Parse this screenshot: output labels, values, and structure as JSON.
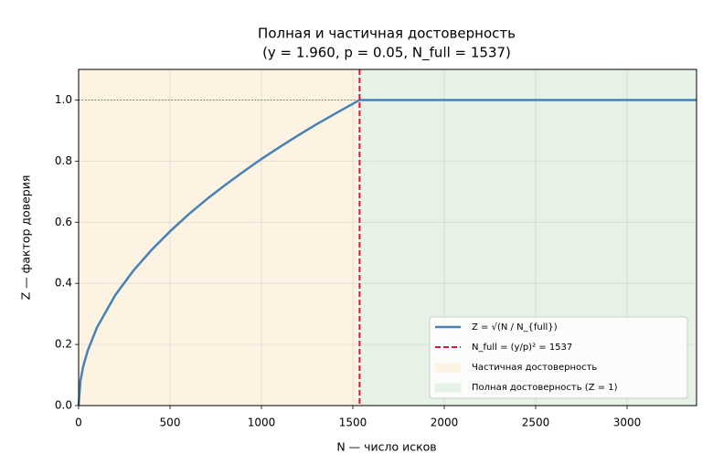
{
  "chart_data": {
    "type": "line",
    "title": [
      "Полная и частичная достоверность",
      "(y = 1.960, p = 0.05, N_full = 1537)"
    ],
    "xlabel": "N — число исков",
    "ylabel": "Z — фактор доверия",
    "x": [
      0,
      10,
      25,
      50,
      100,
      200,
      300,
      400,
      500,
      600,
      700,
      800,
      900,
      1000,
      1100,
      1200,
      1300,
      1400,
      1537,
      2000,
      2500,
      3000,
      3380
    ],
    "series": [
      {
        "name": "Z = √(N / N_{full})",
        "color": "#4682b4",
        "values": [
          0,
          0.081,
          0.128,
          0.18,
          0.255,
          0.361,
          0.442,
          0.51,
          0.57,
          0.625,
          0.675,
          0.721,
          0.765,
          0.807,
          0.846,
          0.884,
          0.92,
          0.954,
          1.0,
          1.0,
          1.0,
          1.0,
          1.0
        ]
      }
    ],
    "vline": {
      "name": "N_full = (y/p)² = 1537",
      "value": 1537,
      "color": "#dc143c"
    },
    "hline": {
      "value": 1.0,
      "x": [
        0,
        1537
      ],
      "color": "#8b6f5a"
    },
    "regions": [
      {
        "name": "Частичная достоверность",
        "x": [
          0,
          1537
        ],
        "color": "#fdf3e3"
      },
      {
        "name": "Полная достоверность (Z = 1)",
        "x": [
          1537,
          3380
        ],
        "color": "#e6f2e6"
      }
    ],
    "xlim": [
      0,
      3380
    ],
    "ylim": [
      0,
      1.1
    ],
    "xticks": [
      0,
      500,
      1000,
      1500,
      2000,
      2500,
      3000
    ],
    "yticks": [
      {
        "value": 0,
        "label": "0.0"
      },
      {
        "value": 0.2,
        "label": "0.2"
      },
      {
        "value": 0.4,
        "label": "0.4"
      },
      {
        "value": 0.6,
        "label": "0.6"
      },
      {
        "value": 0.8,
        "label": "0.8"
      },
      {
        "value": 1.0,
        "label": "1.0"
      }
    ],
    "grid": true,
    "legend": "lower right"
  }
}
